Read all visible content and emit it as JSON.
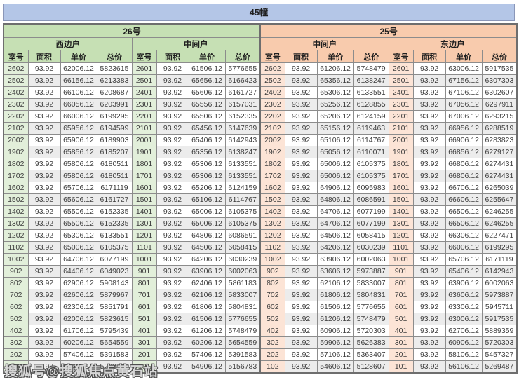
{
  "title": "45幢",
  "watermark": "搜狐号@搜狐焦点黄石站",
  "colors": {
    "title_bar": "#b4c6e7",
    "building_26_header": "#c6e0b4",
    "building_25_header": "#f8cbad",
    "room_col_26": "#e2efda",
    "room_col_25": "#fce4d6",
    "row_alt": "#ececec",
    "grid": "#8c8c8c"
  },
  "chart_data": {
    "type": "table",
    "title": "45幢",
    "buildings": [
      {
        "name": "26号"
      },
      {
        "name": "25号"
      }
    ],
    "column_headers": [
      "室号",
      "面积",
      "单价",
      "总价"
    ],
    "area_constant": "93.92",
    "groups": [
      {
        "building": "26号",
        "unit": "西边户",
        "rows": [
          [
            "2602",
            "93.92",
            "62006.12",
            "5823615"
          ],
          [
            "2502",
            "93.92",
            "66156.12",
            "6213383"
          ],
          [
            "2402",
            "93.92",
            "66106.12",
            "6208687"
          ],
          [
            "2302",
            "93.92",
            "66056.12",
            "6203991"
          ],
          [
            "2202",
            "93.92",
            "66006.12",
            "6199295"
          ],
          [
            "2102",
            "93.92",
            "65956.12",
            "6194599"
          ],
          [
            "2002",
            "93.92",
            "65906.12",
            "6189903"
          ],
          [
            "1902",
            "93.92",
            "65856.12",
            "6185207"
          ],
          [
            "1802",
            "93.92",
            "65806.12",
            "6180511"
          ],
          [
            "1702",
            "93.92",
            "65806.12",
            "6180511"
          ],
          [
            "1602",
            "93.92",
            "65706.12",
            "6171119"
          ],
          [
            "1502",
            "93.92",
            "65606.12",
            "6161727"
          ],
          [
            "1402",
            "93.92",
            "65506.12",
            "6152335"
          ],
          [
            "1302",
            "93.92",
            "65506.12",
            "6152335"
          ],
          [
            "1202",
            "93.92",
            "65306.12",
            "6133551"
          ],
          [
            "1102",
            "93.92",
            "65006.12",
            "6105375"
          ],
          [
            "1002",
            "93.92",
            "64706.12",
            "6077199"
          ],
          [
            "902",
            "93.92",
            "64406.12",
            "6049023"
          ],
          [
            "802",
            "93.92",
            "62906.12",
            "5908143"
          ],
          [
            "702",
            "93.92",
            "62606.12",
            "5879967"
          ],
          [
            "602",
            "93.92",
            "62306.12",
            "5851791"
          ],
          [
            "502",
            "93.92",
            "62006.12",
            "5823615"
          ],
          [
            "402",
            "93.92",
            "61706.12",
            "5795439"
          ],
          [
            "302",
            "93.92",
            "60206.12",
            "5654559"
          ],
          [
            "202",
            "93.92",
            "57406.12",
            "5391583"
          ],
          [
            "102",
            "93.92",
            "55406.12",
            "5203743"
          ]
        ]
      },
      {
        "building": "26号",
        "unit": "中间户",
        "rows": [
          [
            "2601",
            "93.92",
            "61506.12",
            "5776655"
          ],
          [
            "2501",
            "93.92",
            "65656.12",
            "6166423"
          ],
          [
            "2401",
            "93.92",
            "65606.12",
            "6161727"
          ],
          [
            "2301",
            "93.92",
            "65556.12",
            "6157031"
          ],
          [
            "2201",
            "93.92",
            "65506.12",
            "6152335"
          ],
          [
            "2101",
            "93.92",
            "65456.12",
            "6147639"
          ],
          [
            "2001",
            "93.92",
            "65406.12",
            "6142943"
          ],
          [
            "1901",
            "93.92",
            "65356.12",
            "6138247"
          ],
          [
            "1801",
            "93.92",
            "65306.12",
            "6133551"
          ],
          [
            "1701",
            "93.92",
            "65306.12",
            "6133551"
          ],
          [
            "1601",
            "93.92",
            "65206.12",
            "6124159"
          ],
          [
            "1501",
            "93.92",
            "65106.12",
            "6114767"
          ],
          [
            "1401",
            "93.92",
            "65006.12",
            "6105375"
          ],
          [
            "1301",
            "93.92",
            "65006.12",
            "6105375"
          ],
          [
            "1201",
            "93.92",
            "64806.12",
            "6086591"
          ],
          [
            "1101",
            "93.92",
            "64506.12",
            "6058415"
          ],
          [
            "1001",
            "93.92",
            "64206.12",
            "6030239"
          ],
          [
            "901",
            "93.92",
            "63906.12",
            "6002063"
          ],
          [
            "801",
            "93.92",
            "62406.12",
            "5861183"
          ],
          [
            "701",
            "93.92",
            "62106.12",
            "5833007"
          ],
          [
            "601",
            "93.92",
            "61806.12",
            "5804831"
          ],
          [
            "501",
            "93.92",
            "61506.12",
            "5776655"
          ],
          [
            "401",
            "93.92",
            "61206.12",
            "5748479"
          ],
          [
            "301",
            "93.92",
            "60206.12",
            "5654559"
          ],
          [
            "201",
            "93.92",
            "57406.12",
            "5391583"
          ],
          [
            "101",
            "93.92",
            "54906.12",
            "5156783"
          ]
        ]
      },
      {
        "building": "25号",
        "unit": "中间户",
        "rows": [
          [
            "2602",
            "93.92",
            "61206.12",
            "5748479"
          ],
          [
            "2502",
            "93.92",
            "65356.12",
            "6138247"
          ],
          [
            "2402",
            "93.92",
            "65306.12",
            "6133551"
          ],
          [
            "2302",
            "93.92",
            "65256.12",
            "6128855"
          ],
          [
            "2202",
            "93.92",
            "65206.12",
            "6124159"
          ],
          [
            "2102",
            "93.92",
            "65156.12",
            "6119463"
          ],
          [
            "2002",
            "93.92",
            "65106.12",
            "6114767"
          ],
          [
            "1902",
            "93.92",
            "65056.12",
            "6110071"
          ],
          [
            "1802",
            "93.92",
            "65006.12",
            "6105375"
          ],
          [
            "1702",
            "93.92",
            "65006.12",
            "6105375"
          ],
          [
            "1602",
            "93.92",
            "64906.12",
            "6095983"
          ],
          [
            "1502",
            "93.92",
            "64806.12",
            "6086591"
          ],
          [
            "1402",
            "93.92",
            "64706.12",
            "6077199"
          ],
          [
            "1302",
            "93.92",
            "64706.12",
            "6077199"
          ],
          [
            "1202",
            "93.92",
            "64506.12",
            "6058415"
          ],
          [
            "1102",
            "93.92",
            "64206.12",
            "6030239"
          ],
          [
            "1002",
            "93.92",
            "63906.12",
            "6002063"
          ],
          [
            "902",
            "93.92",
            "63606.12",
            "5973887"
          ],
          [
            "802",
            "93.92",
            "62106.12",
            "5833007"
          ],
          [
            "702",
            "93.92",
            "61806.12",
            "5804831"
          ],
          [
            "602",
            "93.92",
            "61506.12",
            "5776655"
          ],
          [
            "502",
            "93.92",
            "61206.12",
            "5748479"
          ],
          [
            "402",
            "93.92",
            "60906.12",
            "5720303"
          ],
          [
            "302",
            "93.92",
            "59906.12",
            "5626383"
          ],
          [
            "202",
            "93.92",
            "57106.12",
            "5363407"
          ],
          [
            "102",
            "93.92",
            "54606.12",
            "5128607"
          ]
        ]
      },
      {
        "building": "25号",
        "unit": "东边户",
        "rows": [
          [
            "2601",
            "93.92",
            "63006.12",
            "5917535"
          ],
          [
            "2501",
            "93.92",
            "67156.12",
            "6307303"
          ],
          [
            "2401",
            "93.92",
            "67106.12",
            "6302607"
          ],
          [
            "2301",
            "93.92",
            "67056.12",
            "6297911"
          ],
          [
            "2201",
            "93.92",
            "67006.12",
            "6293215"
          ],
          [
            "2101",
            "93.92",
            "66956.12",
            "6288519"
          ],
          [
            "2001",
            "93.92",
            "66906.12",
            "6283823"
          ],
          [
            "1901",
            "93.92",
            "66856.12",
            "6279127"
          ],
          [
            "1801",
            "93.92",
            "66806.12",
            "6274431"
          ],
          [
            "1701",
            "93.92",
            "66806.12",
            "6274431"
          ],
          [
            "1601",
            "93.92",
            "66706.12",
            "6265039"
          ],
          [
            "1501",
            "93.92",
            "66606.12",
            "6255647"
          ],
          [
            "1401",
            "93.92",
            "66506.12",
            "6246255"
          ],
          [
            "1301",
            "93.92",
            "66506.12",
            "6246255"
          ],
          [
            "1201",
            "93.92",
            "66306.12",
            "6227471"
          ],
          [
            "1101",
            "93.92",
            "66006.12",
            "6199295"
          ],
          [
            "1001",
            "93.92",
            "65706.12",
            "6171119"
          ],
          [
            "901",
            "93.92",
            "65406.12",
            "6142943"
          ],
          [
            "801",
            "93.92",
            "63906.12",
            "6002063"
          ],
          [
            "701",
            "93.92",
            "63606.12",
            "5973887"
          ],
          [
            "601",
            "93.92",
            "63306.12",
            "5945711"
          ],
          [
            "501",
            "93.92",
            "63006.12",
            "5917535"
          ],
          [
            "401",
            "93.92",
            "62706.12",
            "5889359"
          ],
          [
            "301",
            "93.92",
            "60906.12",
            "5720303"
          ],
          [
            "201",
            "93.92",
            "58106.12",
            "5457327"
          ],
          [
            "101",
            "93.92",
            "56106.12",
            "5269487"
          ]
        ]
      }
    ]
  }
}
